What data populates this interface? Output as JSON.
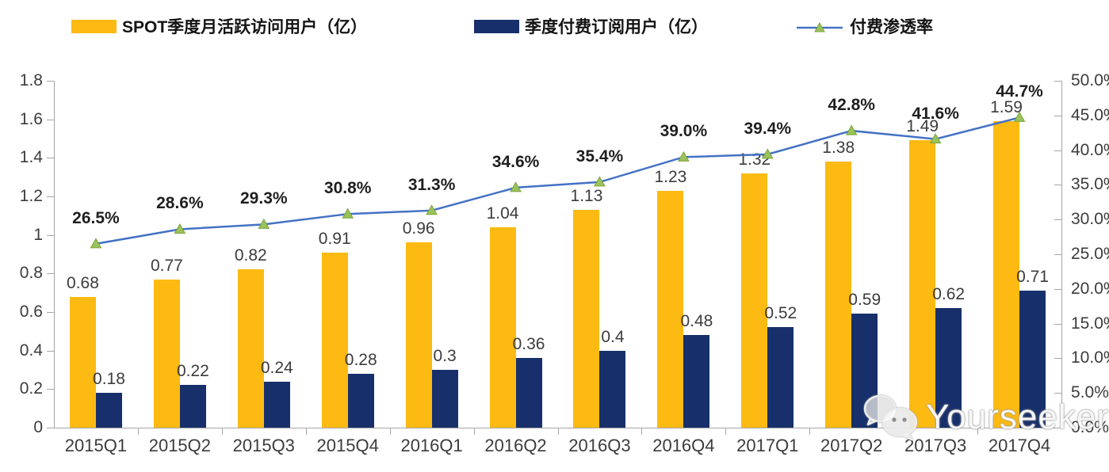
{
  "legend": [
    {
      "label": "SPOT季度月活跃访问用户（亿）"
    },
    {
      "label": "季度付费订阅用户（亿）"
    },
    {
      "label": "付费渗透率"
    }
  ],
  "watermark": {
    "text": "Yourseeker",
    "icon": "wechat-icon"
  },
  "chart_data": {
    "type": "bar",
    "subtype": "grouped bars + line on secondary axis",
    "title": "",
    "categories": [
      "2015Q1",
      "2015Q2",
      "2015Q3",
      "2015Q4",
      "2016Q1",
      "2016Q2",
      "2016Q3",
      "2016Q4",
      "2017Q1",
      "2017Q2",
      "2017Q3",
      "2017Q4"
    ],
    "series": [
      {
        "name": "SPOT季度月活跃访问用户（亿）",
        "type": "bar",
        "axis": "left",
        "color": "#FCBA12",
        "values": [
          0.68,
          0.77,
          0.82,
          0.91,
          0.96,
          1.04,
          1.13,
          1.23,
          1.32,
          1.38,
          1.49,
          1.59
        ],
        "labels": [
          "0.68",
          "0.77",
          "0.82",
          "0.91",
          "0.96",
          "1.04",
          "1.13",
          "1.23",
          "1.32",
          "1.38",
          "1.49",
          "1.59"
        ]
      },
      {
        "name": "季度付费订阅用户（亿）",
        "type": "bar",
        "axis": "left",
        "color": "#17306B",
        "values": [
          0.18,
          0.22,
          0.24,
          0.28,
          0.3,
          0.36,
          0.4,
          0.48,
          0.52,
          0.59,
          0.62,
          0.71
        ],
        "labels": [
          "0.18",
          "0.22",
          "0.24",
          "0.28",
          "0.3",
          "0.36",
          "0.4",
          "0.48",
          "0.52",
          "0.59",
          "0.62",
          "0.71"
        ]
      },
      {
        "name": "付费渗透率",
        "type": "line",
        "axis": "right",
        "color": "#4472C4",
        "marker": "triangle-up",
        "marker_color": "#9BC25B",
        "marker_edge_color": "#79A43C",
        "values": [
          26.5,
          28.6,
          29.3,
          30.8,
          31.3,
          34.6,
          35.4,
          39.0,
          39.4,
          42.8,
          41.6,
          44.7
        ],
        "labels": [
          "26.5%",
          "28.6%",
          "29.3%",
          "30.8%",
          "31.3%",
          "34.6%",
          "35.4%",
          "39.0%",
          "39.4%",
          "42.8%",
          "41.6%",
          "44.7%"
        ]
      }
    ],
    "left_axis": {
      "min": 0,
      "max": 1.8,
      "step": 0.2,
      "tick_labels_top_to_bottom": [
        "1.8",
        "1.6",
        "1.4",
        "1.2",
        "1",
        "0.8",
        "0.6",
        "0.4",
        "0.2",
        "0"
      ]
    },
    "right_axis": {
      "min": 0,
      "max": 50,
      "step": 5,
      "tick_labels_top_to_bottom": [
        "50.0%",
        "45.0%",
        "40.0%",
        "35.0%",
        "30.0%",
        "25.0%",
        "20.0%",
        "15.0%",
        "10.0%",
        "5.0%",
        "0.0%"
      ]
    },
    "grid": false,
    "legend_position": "top",
    "axis_color": "#A6A6A6",
    "label_color": "#3C3C3C"
  }
}
